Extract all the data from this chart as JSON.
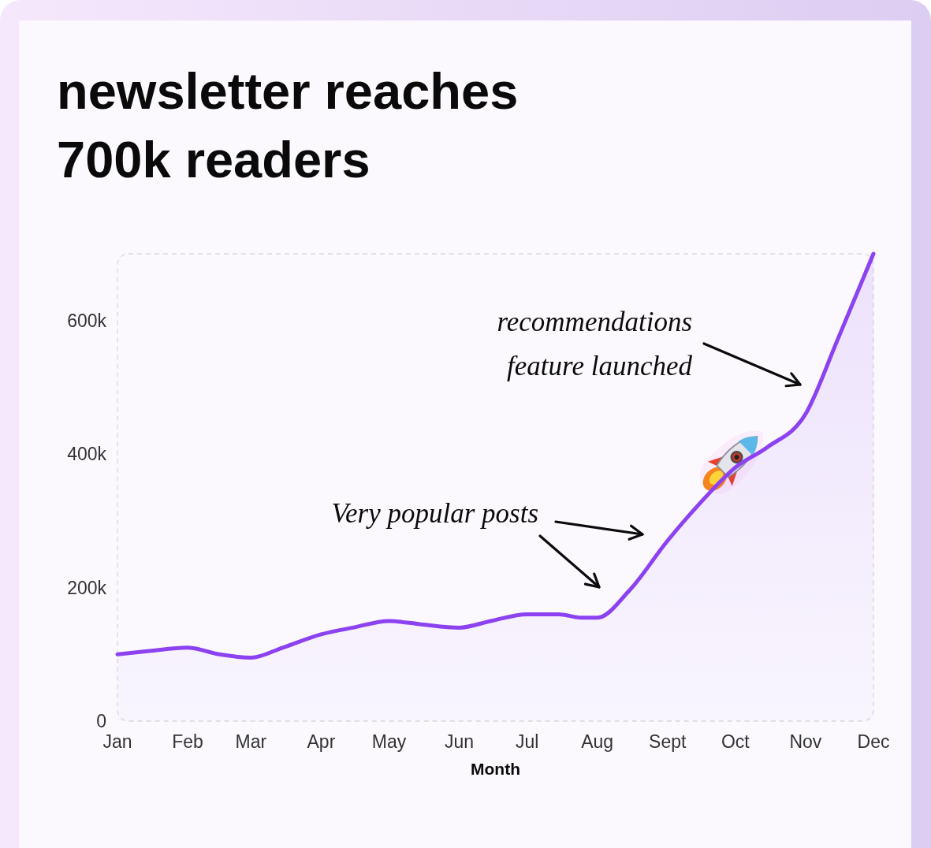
{
  "chart_data": {
    "type": "area",
    "title": "newsletter reaches 700k readers",
    "xlabel": "Month",
    "x": [
      "--01-01",
      "--01-15",
      "--02-01",
      "--02-15",
      "--03-01",
      "--03-15",
      "--04-01",
      "--04-15",
      "--05-01",
      "--05-15",
      "--06-01",
      "--06-15",
      "--07-01",
      "--07-15",
      "--07-25",
      "--08-01",
      "--08-15",
      "--09-01",
      "--09-15",
      "--10-01",
      "--10-15",
      "--11-01",
      "--11-15",
      "--12-01"
    ],
    "values": [
      100000,
      105000,
      110000,
      100000,
      95000,
      110000,
      130000,
      140000,
      150000,
      145000,
      140000,
      150000,
      160000,
      160000,
      155000,
      155000,
      195000,
      270000,
      325000,
      380000,
      410000,
      460000,
      570000,
      700000
    ],
    "color": "#8c42f0",
    "xlim": [
      "--01-01",
      "--12-01"
    ],
    "xticks": [
      {
        "value": "--01-01",
        "label": "Jan"
      },
      {
        "value": "--02-01",
        "label": "Feb"
      },
      {
        "value": "--03-01",
        "label": "Mar"
      },
      {
        "value": "--04-01",
        "label": "Apr"
      },
      {
        "value": "--05-01",
        "label": "May"
      },
      {
        "value": "--06-01",
        "label": "Jun"
      },
      {
        "value": "--07-01",
        "label": "Jul"
      },
      {
        "value": "--08-01",
        "label": "Aug"
      },
      {
        "value": "--09-01",
        "label": "Sept"
      },
      {
        "value": "--10-01",
        "label": "Oct"
      },
      {
        "value": "--11-01",
        "label": "Nov"
      },
      {
        "value": "--12-01",
        "label": "Dec"
      }
    ],
    "ylim": [
      0,
      700000
    ],
    "yticks": [
      0,
      {
        "value": 200000,
        "label": "200k"
      },
      {
        "value": 400000,
        "label": "400k"
      },
      {
        "value": 600000,
        "label": "600k"
      }
    ],
    "annotations": [
      "Very popular posts",
      "recommendations feature launched"
    ]
  }
}
